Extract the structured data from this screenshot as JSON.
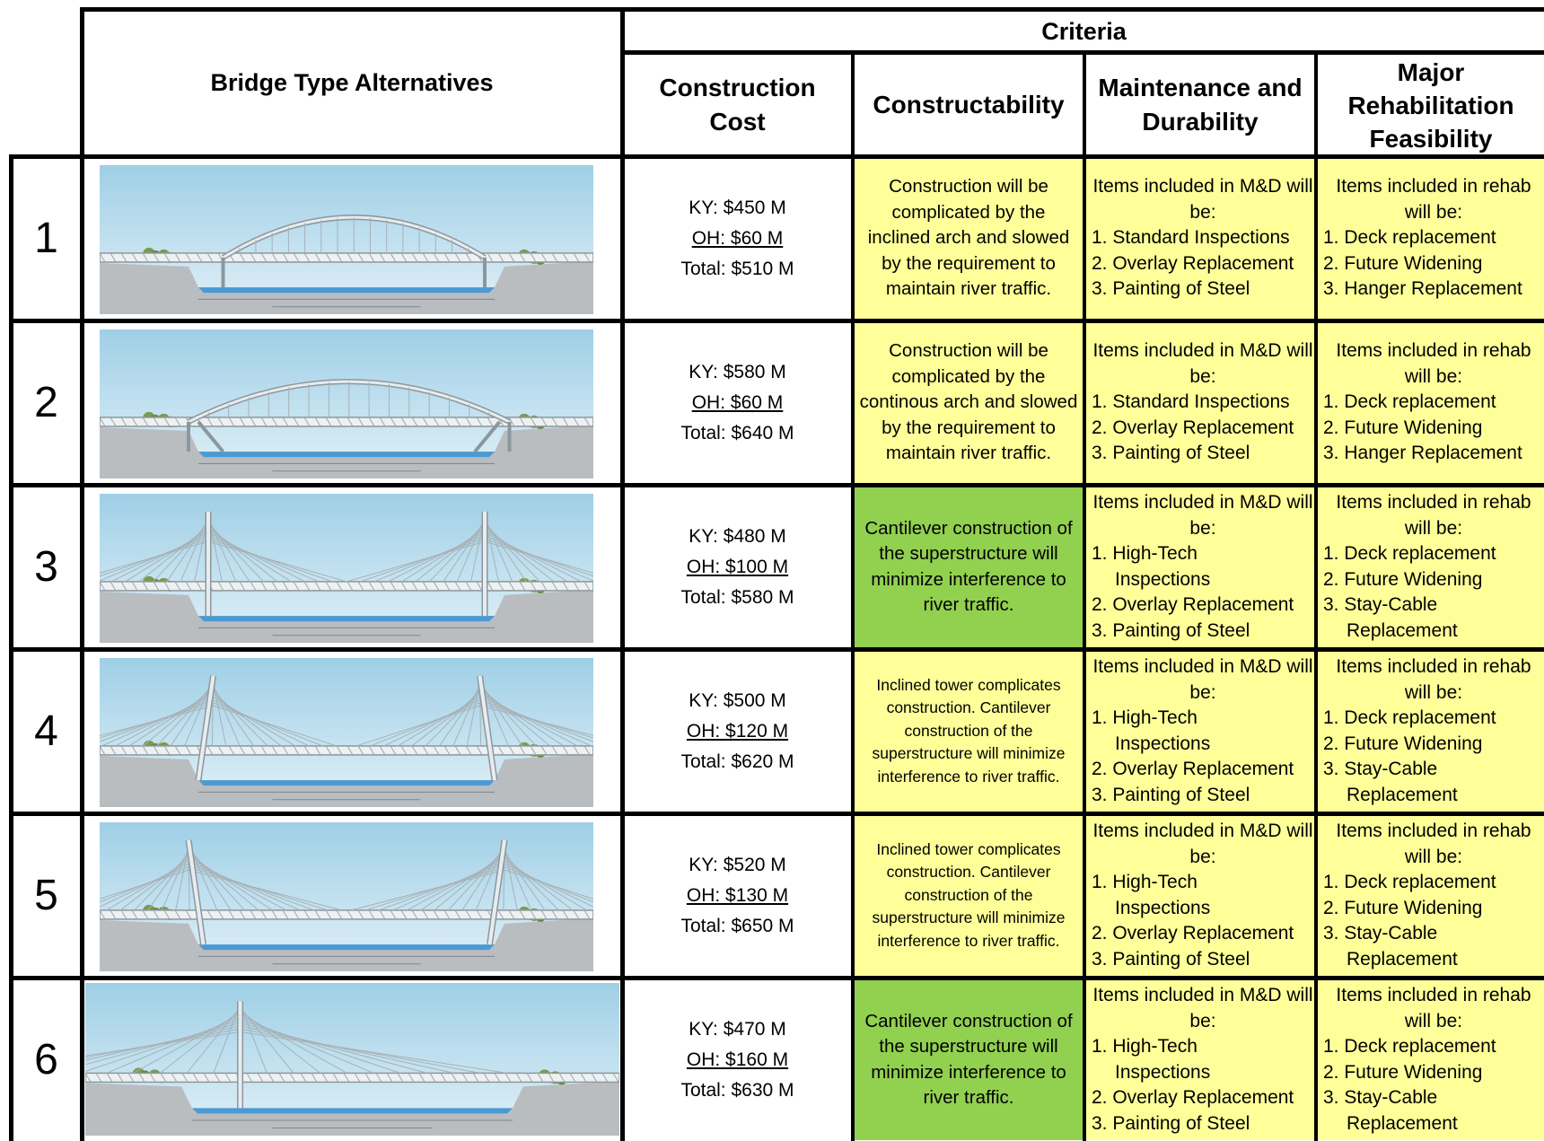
{
  "header": {
    "bridge_type": "Bridge Type Alternatives",
    "criteria": "Criteria",
    "columns": [
      "Construction Cost",
      "Constructability",
      "Maintenance and Durability",
      "Major Rehabilitation Feasibility"
    ]
  },
  "colors": {
    "yellow": "#ffff99",
    "green": "#92d050",
    "sky": "#bfe0ef",
    "water": "#4a9ad4",
    "ground": "#b9bdc0"
  },
  "rows": [
    {
      "num": "1",
      "type": "tied-arch",
      "cost": {
        "ky": "KY:  $450 M",
        "oh": "OH:   $60 M",
        "total": "Total: $510 M"
      },
      "constructability": {
        "color": "yellow",
        "text": "Construction will be complicated by the inclined arch and slowed by the requirement to maintain river traffic."
      },
      "maintenance": {
        "intro": "Items included in M&D will be:",
        "items": [
          "1. Standard Inspections",
          "2. Overlay Replacement",
          "3. Painting of Steel"
        ]
      },
      "rehab": {
        "intro": "Items included in rehab will be:",
        "items": [
          "1. Deck replacement",
          "2. Future Widening",
          "3. Hanger Replacement"
        ]
      }
    },
    {
      "num": "2",
      "type": "continuous-arch",
      "cost": {
        "ky": "KY:  $580 M",
        "oh": "OH:   $60 M",
        "total": "Total:  $640 M"
      },
      "constructability": {
        "color": "yellow",
        "text": "Construction will be complicated by the continous arch and slowed by the requirement to maintain river traffic."
      },
      "maintenance": {
        "intro": "Items included in M&D will be:",
        "items": [
          "1. Standard Inspections",
          "2. Overlay Replacement",
          "3. Painting of Steel"
        ]
      },
      "rehab": {
        "intro": "Items included in rehab will be:",
        "items": [
          "1. Deck replacement",
          "2. Future Widening",
          "3. Hanger Replacement"
        ]
      }
    },
    {
      "num": "3",
      "type": "cable-stayed-vertical",
      "cost": {
        "ky": "KY:  $480 M",
        "oh": "OH:  $100 M",
        "total": "Total: $580 M"
      },
      "constructability": {
        "color": "green",
        "text": "Cantilever construction of the superstructure will minimize interference to river traffic."
      },
      "maintenance": {
        "intro": "Items included in M&D will be:",
        "items": [
          "1. High-Tech",
          "Inspections",
          "2. Overlay Replacement",
          "3. Painting of Steel"
        ]
      },
      "rehab": {
        "intro": "Items included in rehab will be:",
        "items": [
          "1. Deck replacement",
          "2. Future Widening",
          "3. Stay-Cable",
          "Replacement"
        ]
      }
    },
    {
      "num": "4",
      "type": "cable-stayed-inclined",
      "cost": {
        "ky": "KY:  $500 M",
        "oh": "OH:  $120 M",
        "total": "Total: $620 M"
      },
      "constructability": {
        "color": "yellow",
        "text": "Inclined tower complicates construction.  Cantilever construction of the superstructure will minimize interference to river traffic."
      },
      "maintenance": {
        "intro": "Items included in M&D will be:",
        "items": [
          "1. High-Tech",
          "Inspections",
          "2. Overlay Replacement",
          "3. Painting of Steel"
        ]
      },
      "rehab": {
        "intro": "Items included in rehab will be:",
        "items": [
          "1. Deck replacement",
          "2. Future Widening",
          "3. Stay-Cable",
          "Replacement"
        ]
      }
    },
    {
      "num": "5",
      "type": "cable-stayed-inclined-out",
      "cost": {
        "ky": "KY:  $520 M",
        "oh": "OH:  $130 M",
        "total": "Total: $650 M"
      },
      "constructability": {
        "color": "yellow",
        "text": "Inclined tower complicates construction.  Cantilever construction of the superstructure will minimize interference to river traffic."
      },
      "maintenance": {
        "intro": "Items included in M&D will be:",
        "items": [
          "1. High-Tech",
          "Inspections",
          "2. Overlay Replacement",
          "3. Painting of Steel"
        ]
      },
      "rehab": {
        "intro": "Items included in rehab will be:",
        "items": [
          "1. Deck replacement",
          "2. Future Widening",
          "3. Stay-Cable",
          "Replacement"
        ]
      }
    },
    {
      "num": "6",
      "type": "cable-stayed-single",
      "cost": {
        "ky": "KY:  $470 M",
        "oh": "OH:  $160 M",
        "total": "Total: $630 M"
      },
      "constructability": {
        "color": "green",
        "text": "Cantilever construction of the superstructure will minimize interference to river traffic."
      },
      "maintenance": {
        "intro": "Items included in M&D will be:",
        "items": [
          "1. High-Tech",
          "Inspections",
          "2. Overlay Replacement",
          "3. Painting of Steel"
        ]
      },
      "rehab": {
        "intro": "Items included in rehab will be:",
        "items": [
          "1. Deck replacement",
          "2. Future Widening",
          "3. Stay-Cable",
          "Replacement"
        ]
      }
    }
  ]
}
